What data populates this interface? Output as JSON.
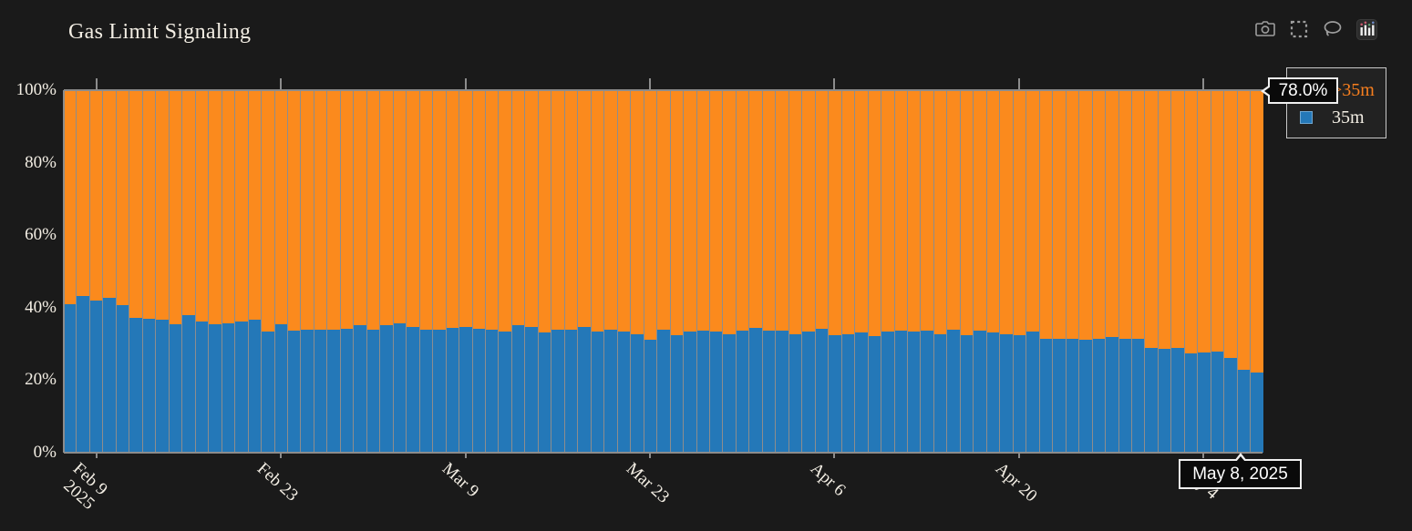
{
  "title": "Gas Limit Signaling",
  "colors": {
    "background": "#1a1a1a",
    "text": "#f3eee4",
    "axis": "#8c8c8c",
    "bar_orange": "#fb8a1d",
    "bar_blue": "#2478b8",
    "legend_orange_text": "#f87f1e",
    "tooltip_background": "#0a0a0a",
    "tooltip_border": "#f0f0f0"
  },
  "modebar": {
    "buttons": [
      "camera-icon",
      "box-select-icon",
      "lasso-select-icon",
      "plotly-logo-icon"
    ]
  },
  "legend": {
    "items": [
      {
        "label": ">35m",
        "color": "#fb8a1d"
      },
      {
        "label": "35m",
        "color": "#2478b8"
      }
    ]
  },
  "hover": {
    "value_label": "78.0%",
    "date_label": "May 8, 2025",
    "hovered_series": ">35m"
  },
  "chart_data": {
    "type": "bar",
    "stacked": true,
    "normalized_to_100_percent": true,
    "title": "Gas Limit Signaling",
    "xlabel": "",
    "ylabel": "",
    "ylim": [
      0,
      100
    ],
    "legend_position": "top-right",
    "grid": false,
    "x": [
      "Feb 7",
      "Feb 8",
      "Feb 9",
      "Feb 10",
      "Feb 11",
      "Feb 12",
      "Feb 13",
      "Feb 14",
      "Feb 15",
      "Feb 16",
      "Feb 17",
      "Feb 18",
      "Feb 19",
      "Feb 20",
      "Feb 21",
      "Feb 22",
      "Feb 23",
      "Feb 24",
      "Feb 25",
      "Feb 26",
      "Feb 27",
      "Feb 28",
      "Mar 1",
      "Mar 2",
      "Mar 3",
      "Mar 4",
      "Mar 5",
      "Mar 6",
      "Mar 7",
      "Mar 8",
      "Mar 9",
      "Mar 10",
      "Mar 11",
      "Mar 12",
      "Mar 13",
      "Mar 14",
      "Mar 15",
      "Mar 16",
      "Mar 17",
      "Mar 18",
      "Mar 19",
      "Mar 20",
      "Mar 21",
      "Mar 22",
      "Mar 23",
      "Mar 24",
      "Mar 25",
      "Mar 26",
      "Mar 27",
      "Mar 28",
      "Mar 29",
      "Mar 30",
      "Mar 31",
      "Apr 1",
      "Apr 2",
      "Apr 3",
      "Apr 4",
      "Apr 5",
      "Apr 6",
      "Apr 7",
      "Apr 8",
      "Apr 9",
      "Apr 10",
      "Apr 11",
      "Apr 12",
      "Apr 13",
      "Apr 14",
      "Apr 15",
      "Apr 16",
      "Apr 17",
      "Apr 18",
      "Apr 19",
      "Apr 20",
      "Apr 21",
      "Apr 22",
      "Apr 23",
      "Apr 24",
      "Apr 25",
      "Apr 26",
      "Apr 27",
      "Apr 28",
      "Apr 29",
      "Apr 30",
      "May 1",
      "May 2",
      "May 3",
      "May 4",
      "May 5",
      "May 6",
      "May 7",
      "May 8"
    ],
    "series": [
      {
        "name": ">35m",
        "color": "#fb8a1d",
        "values": [
          59.0,
          56.8,
          58.0,
          57.2,
          59.2,
          62.7,
          63.1,
          63.4,
          64.5,
          62.0,
          63.9,
          64.5,
          64.3,
          63.9,
          63.3,
          66.7,
          64.5,
          66.4,
          66.0,
          66.0,
          66.0,
          65.9,
          64.7,
          66.0,
          64.7,
          64.3,
          65.4,
          66.0,
          66.0,
          65.6,
          65.3,
          65.8,
          66.0,
          66.6,
          64.9,
          65.4,
          66.8,
          66.0,
          66.0,
          65.4,
          66.5,
          66.0,
          66.7,
          67.3,
          68.9,
          66.0,
          67.5,
          66.7,
          66.3,
          66.7,
          67.4,
          66.3,
          65.6,
          66.4,
          66.4,
          67.4,
          66.7,
          65.8,
          67.5,
          67.3,
          66.9,
          67.9,
          66.7,
          66.4,
          66.7,
          66.4,
          67.4,
          66.2,
          67.7,
          66.3,
          66.8,
          67.3,
          67.7,
          66.7,
          68.5,
          68.5,
          68.6,
          68.9,
          68.5,
          68.2,
          68.5,
          68.5,
          71.0,
          71.4,
          71.0,
          72.7,
          72.4,
          72.1,
          73.9,
          77.1,
          78.0
        ]
      },
      {
        "name": "35m",
        "color": "#2478b8",
        "values": [
          41.0,
          43.2,
          42.0,
          42.8,
          40.8,
          37.3,
          36.9,
          36.6,
          35.5,
          38.0,
          36.1,
          35.5,
          35.7,
          36.1,
          36.7,
          33.3,
          35.5,
          33.6,
          34.0,
          34.0,
          34.0,
          34.1,
          35.3,
          34.0,
          35.3,
          35.7,
          34.6,
          34.0,
          34.0,
          34.4,
          34.7,
          34.2,
          34.0,
          33.4,
          35.1,
          34.6,
          33.2,
          34.0,
          34.0,
          34.6,
          33.5,
          34.0,
          33.3,
          32.7,
          31.1,
          34.0,
          32.5,
          33.3,
          33.7,
          33.3,
          32.6,
          33.7,
          34.4,
          33.6,
          33.6,
          32.6,
          33.3,
          34.2,
          32.5,
          32.7,
          33.1,
          32.1,
          33.3,
          33.6,
          33.3,
          33.6,
          32.6,
          33.8,
          32.3,
          33.7,
          33.2,
          32.7,
          32.3,
          33.3,
          31.5,
          31.5,
          31.4,
          31.1,
          31.5,
          31.8,
          31.5,
          31.5,
          29.0,
          28.6,
          29.0,
          27.3,
          27.6,
          27.9,
          26.1,
          22.9,
          22.0
        ]
      }
    ],
    "yaxis": {
      "ticks": [
        "0%",
        "20%",
        "40%",
        "60%",
        "80%",
        "100%"
      ]
    },
    "xaxis": {
      "tick_labels": [
        "Feb 9\n2025",
        "Feb 23",
        "Mar 9",
        "Mar 23",
        "Apr 6",
        "Apr 20",
        "May 4"
      ],
      "tick_indices": [
        2,
        16,
        30,
        44,
        58,
        72,
        86
      ]
    },
    "hover": {
      "x": "May 8, 2025",
      "series": ">35m",
      "value_pct": 78.0
    }
  }
}
